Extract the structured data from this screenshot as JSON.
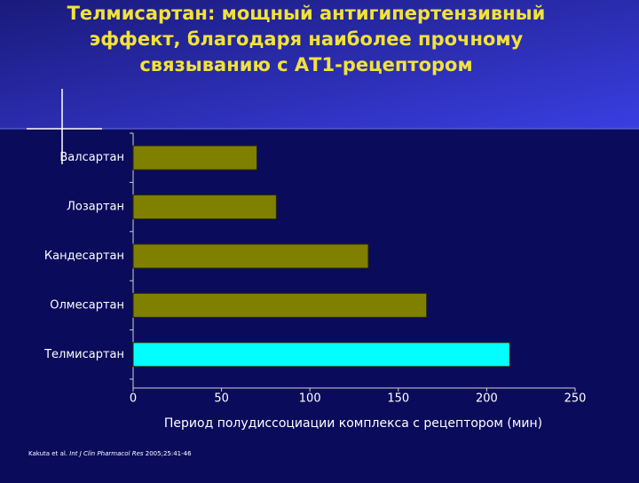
{
  "chart_data": {
    "type": "hbar",
    "title": [
      "Телмисартан: мощный антигипертензивный",
      "эффект, благодаря наиболее прочному",
      "связыванию с АТ1-рецептором"
    ],
    "categories": [
      "Валсартан",
      "Лозартан",
      "Кандесартан",
      "Олмесартан",
      "Телмисартан"
    ],
    "values": [
      70,
      81,
      133,
      166,
      213
    ],
    "colors": [
      "#808000",
      "#808000",
      "#808000",
      "#808000",
      "#00ffff"
    ],
    "xlim": [
      0,
      250
    ],
    "xticks": [
      0,
      50,
      100,
      150,
      200,
      250
    ],
    "xlabel": "Период полудиссоциации комплекса с рецептором (мин)",
    "citation": {
      "authors": "Kakuta et al.",
      "journal": "Int J Clin Pharmacol Res",
      "details": "2005;25:41-46"
    }
  }
}
